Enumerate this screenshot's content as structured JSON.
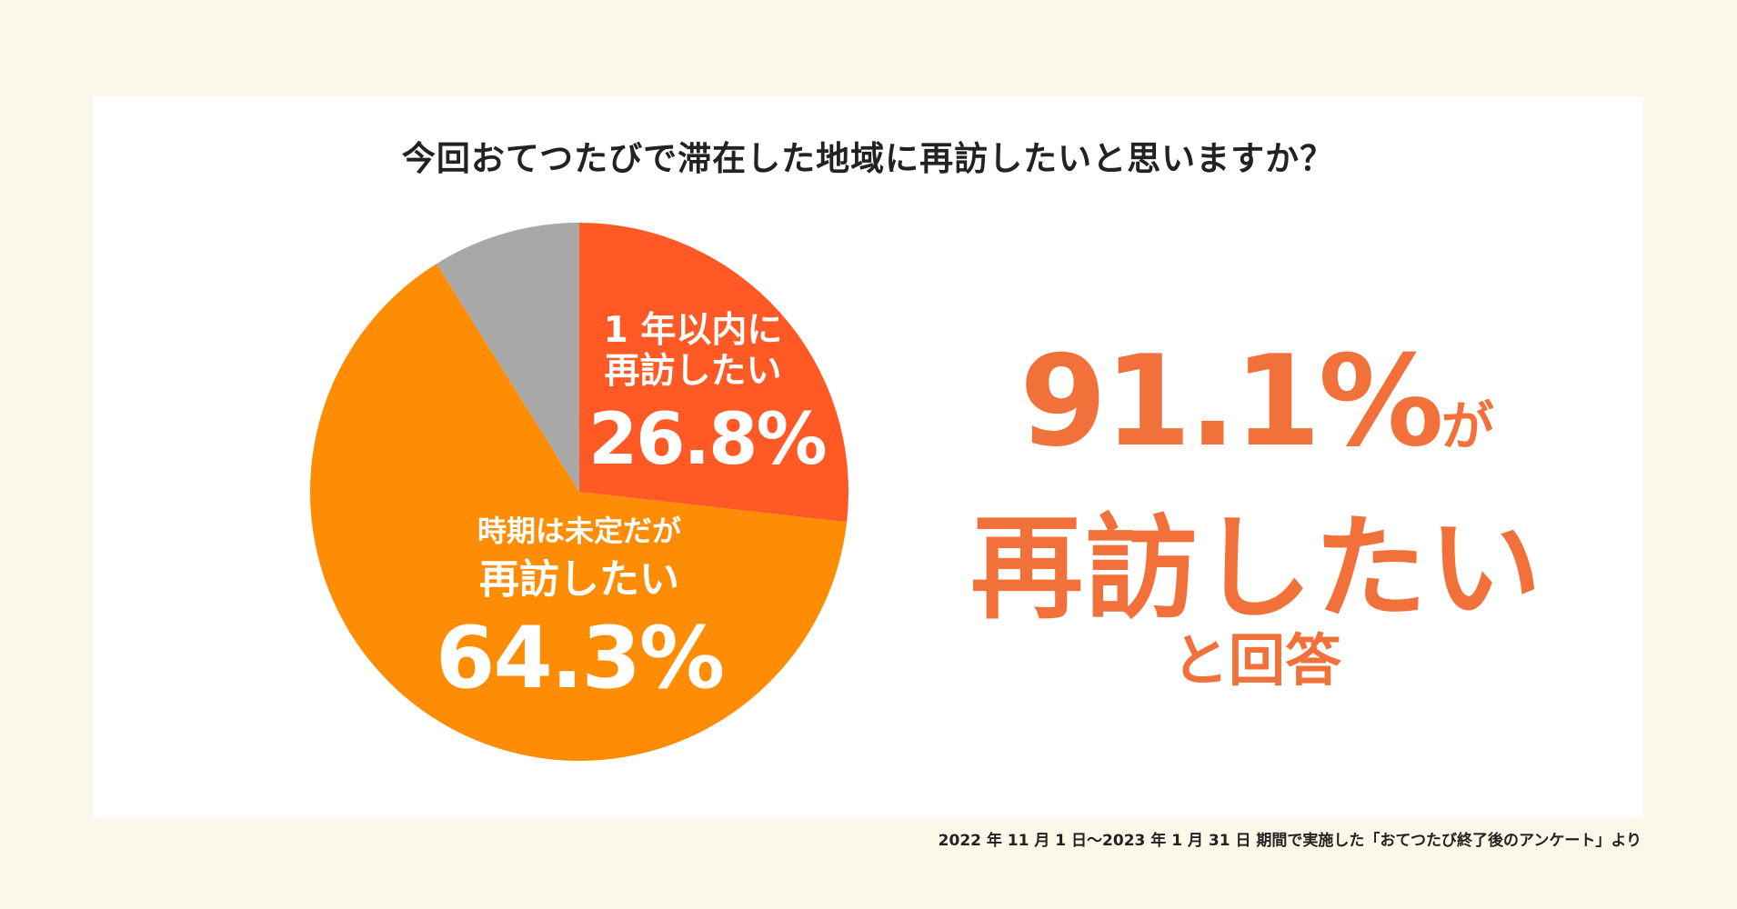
{
  "title": "今回おてつたびで滞在した地域に再訪したいと思いますか？",
  "chart_data": {
    "type": "pie",
    "slices": [
      {
        "label": "1 年以内に再訪したい",
        "value": 26.8,
        "color": "#ff5a26"
      },
      {
        "label": "時期は未定だが再訪したい",
        "value": 64.3,
        "color": "#ff8c05"
      },
      {
        "label": "",
        "value": 8.9,
        "color": "#a8a8a8"
      }
    ]
  },
  "labels": {
    "within_year_line1": "1 年以内に",
    "within_year_line2": "再訪したい",
    "within_year_pct": "26.8%",
    "undecided_line1": "時期は未定だが",
    "undecided_line2": "再訪したい",
    "undecided_pct": "64.3%"
  },
  "headline": {
    "total_pct": "91.1%",
    "total_suffix": "が",
    "line2": "再訪したい",
    "line3": "と回答"
  },
  "footnote": "2022 年 11 月 1 日〜2023 年 1 月 31 日 期間で実施した「おてつたび終了後のアンケート」より"
}
